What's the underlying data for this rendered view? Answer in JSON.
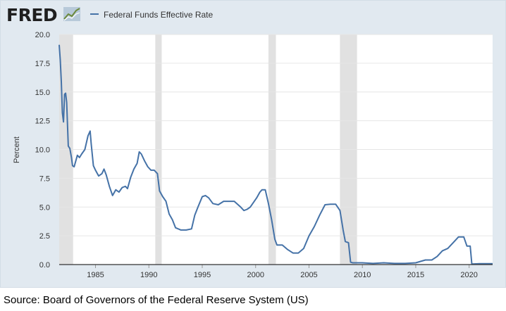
{
  "header": {
    "logo_text": "FRED",
    "logo_icon": "chart-line-icon"
  },
  "source": "Source: Board of Governors of the Federal Reserve System (US)",
  "colors": {
    "background": "#e1e9f0",
    "plot_background": "#ffffff",
    "line": "#4572a7",
    "recession": "#e1e1e1",
    "logo": "#1f1f1f",
    "grid": "#e6e6e6"
  },
  "chart_data": {
    "type": "line",
    "title": "",
    "xlabel": "",
    "ylabel": "Percent",
    "ylim": [
      0,
      20
    ],
    "xlim": [
      1981.6,
      2022.2
    ],
    "yticks": [
      "0.0",
      "2.5",
      "5.0",
      "7.5",
      "10.0",
      "12.5",
      "15.0",
      "17.5",
      "20.0"
    ],
    "xticks": [
      "1985",
      "1990",
      "1995",
      "2000",
      "2005",
      "2010",
      "2015",
      "2020"
    ],
    "grid": true,
    "legend_placement": "top-left",
    "recessions": [
      [
        1981.6,
        1982.9
      ],
      [
        1990.6,
        1991.2
      ],
      [
        2001.2,
        2001.9
      ],
      [
        2007.9,
        2009.5
      ]
    ],
    "series": [
      {
        "name": "Federal Funds Effective Rate",
        "x": [
          1981.6,
          1981.7,
          1981.8,
          1981.9,
          1982.0,
          1982.1,
          1982.2,
          1982.3,
          1982.45,
          1982.6,
          1982.75,
          1982.85,
          1983.0,
          1983.3,
          1983.5,
          1983.7,
          1984.0,
          1984.3,
          1984.5,
          1984.6,
          1984.8,
          1985.0,
          1985.3,
          1985.6,
          1985.8,
          1986.0,
          1986.3,
          1986.6,
          1986.9,
          1987.2,
          1987.5,
          1987.8,
          1988.0,
          1988.3,
          1988.6,
          1988.9,
          1989.1,
          1989.3,
          1989.6,
          1989.9,
          1990.2,
          1990.5,
          1990.8,
          1991.0,
          1991.3,
          1991.6,
          1991.9,
          1992.2,
          1992.5,
          1993.0,
          1993.5,
          1994.0,
          1994.3,
          1994.6,
          1995.0,
          1995.3,
          1995.6,
          1996.0,
          1996.5,
          1997.0,
          1997.5,
          1998.0,
          1998.6,
          1998.9,
          1999.2,
          1999.5,
          1999.8,
          2000.1,
          2000.4,
          2000.6,
          2000.9,
          2001.2,
          2001.5,
          2001.8,
          2002.0,
          2002.5,
          2003.0,
          2003.5,
          2004.0,
          2004.5,
          2005.0,
          2005.5,
          2006.0,
          2006.5,
          2007.0,
          2007.5,
          2007.9,
          2008.2,
          2008.4,
          2008.7,
          2008.9,
          2009.1,
          2010.0,
          2011.0,
          2012.0,
          2013.0,
          2014.0,
          2015.0,
          2015.9,
          2016.5,
          2017.0,
          2017.5,
          2018.0,
          2018.5,
          2019.0,
          2019.5,
          2019.8,
          2020.1,
          2020.25,
          2021.0,
          2022.2
        ],
        "y": [
          19.1,
          17.8,
          15.9,
          13.2,
          12.4,
          14.8,
          14.9,
          14.1,
          10.3,
          10.1,
          9.3,
          8.6,
          8.5,
          9.5,
          9.3,
          9.6,
          10.0,
          11.2,
          11.6,
          10.5,
          8.6,
          8.2,
          7.7,
          7.9,
          8.3,
          7.8,
          6.8,
          6.0,
          6.5,
          6.3,
          6.7,
          6.8,
          6.6,
          7.6,
          8.3,
          8.8,
          9.8,
          9.6,
          9.0,
          8.5,
          8.2,
          8.2,
          7.9,
          6.4,
          5.9,
          5.5,
          4.4,
          3.9,
          3.2,
          3.0,
          3.0,
          3.1,
          4.3,
          5.0,
          5.9,
          6.0,
          5.8,
          5.3,
          5.2,
          5.5,
          5.5,
          5.5,
          5.0,
          4.7,
          4.8,
          5.0,
          5.4,
          5.8,
          6.3,
          6.5,
          6.5,
          5.3,
          3.9,
          2.2,
          1.7,
          1.7,
          1.3,
          1.0,
          1.0,
          1.4,
          2.5,
          3.3,
          4.3,
          5.2,
          5.25,
          5.25,
          4.7,
          3.0,
          2.0,
          1.9,
          0.2,
          0.15,
          0.15,
          0.1,
          0.15,
          0.1,
          0.1,
          0.15,
          0.4,
          0.4,
          0.7,
          1.2,
          1.4,
          1.9,
          2.4,
          2.4,
          1.6,
          1.6,
          0.05,
          0.08,
          0.08
        ]
      }
    ]
  }
}
